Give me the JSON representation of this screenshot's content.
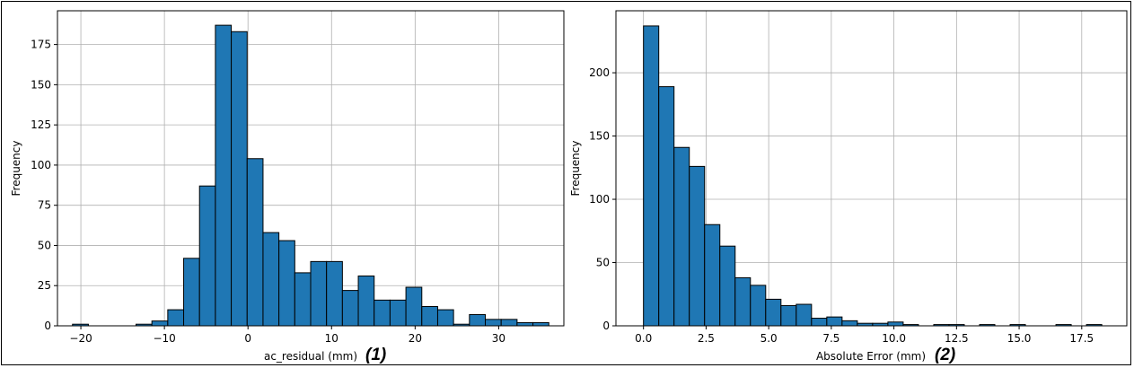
{
  "chart_data": [
    {
      "type": "bar",
      "xlabel": "ac_residual (mm)",
      "ylabel": "Frequency",
      "panel_label": "(1)",
      "xlim": [
        -22.8,
        37.8
      ],
      "ylim": [
        0,
        196
      ],
      "xticks": [
        -20,
        -10,
        0,
        10,
        20,
        30
      ],
      "yticks": [
        0,
        25,
        50,
        75,
        100,
        125,
        150,
        175
      ],
      "grid": true,
      "color": "#1f77b4",
      "bin_edges": [
        -21.0,
        -19.1,
        -17.2,
        -15.3,
        -13.4,
        -11.5,
        -9.6,
        -7.7,
        -5.8,
        -3.9,
        -2.0,
        -0.1,
        1.8,
        3.7,
        5.6,
        7.5,
        9.4,
        11.3,
        13.2,
        15.1,
        17.0,
        18.9,
        20.8,
        22.7,
        24.6,
        26.5,
        28.4,
        30.3,
        32.2,
        34.1,
        36.0
      ],
      "counts": [
        1,
        0,
        0,
        0,
        1,
        3,
        10,
        42,
        87,
        187,
        183,
        104,
        58,
        53,
        33,
        40,
        40,
        22,
        31,
        16,
        16,
        24,
        12,
        10,
        1,
        7,
        4,
        4,
        2,
        2
      ]
    },
    {
      "type": "bar",
      "xlabel": "Absolute Error (mm)",
      "ylabel": "Frequency",
      "panel_label": "(2)",
      "xlim": [
        -1.1,
        19.3
      ],
      "ylim": [
        0,
        249
      ],
      "xticks": [
        0.0,
        2.5,
        5.0,
        7.5,
        10.0,
        12.5,
        15.0,
        17.5
      ],
      "yticks": [
        0,
        50,
        100,
        150,
        200
      ],
      "grid": true,
      "color": "#1f77b4",
      "bin_edges": [
        0.0,
        0.61,
        1.22,
        1.83,
        2.44,
        3.05,
        3.66,
        4.27,
        4.88,
        5.49,
        6.1,
        6.71,
        7.32,
        7.93,
        8.54,
        9.15,
        9.76,
        10.37,
        10.98,
        11.59,
        12.2,
        12.81,
        13.42,
        14.03,
        14.64,
        15.25,
        15.86,
        16.47,
        17.08,
        17.69,
        18.3
      ],
      "counts": [
        237,
        189,
        141,
        126,
        80,
        63,
        38,
        32,
        21,
        16,
        17,
        6,
        7,
        4,
        2,
        2,
        3,
        1,
        0,
        1,
        1,
        0,
        1,
        0,
        1,
        0,
        0,
        1,
        0,
        1
      ]
    }
  ]
}
